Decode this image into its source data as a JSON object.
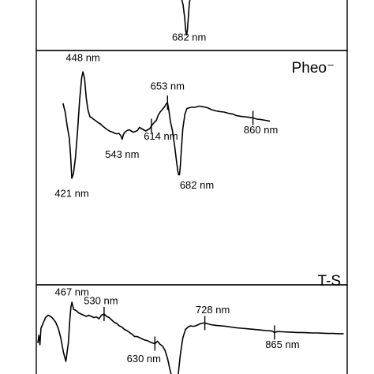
{
  "chart_data": [
    {
      "type": "line",
      "panel": "top",
      "title": "",
      "annotations": [
        {
          "label": "682 nm",
          "x": 682,
          "kind": "minimum"
        }
      ]
    },
    {
      "type": "line",
      "panel": "middle",
      "title": "Pheo⁻",
      "series": [
        {
          "x": [
            400,
            405,
            410,
            415,
            418,
            421,
            425,
            430,
            435,
            440,
            445,
            448,
            452,
            456,
            460,
            465,
            470,
            475,
            480,
            485,
            490,
            495,
            500,
            505,
            510,
            515,
            520,
            525,
            530,
            535,
            540,
            543,
            546,
            550,
            555,
            560,
            565,
            570,
            575,
            580,
            585,
            590,
            595,
            600,
            605,
            610,
            614,
            618,
            622,
            626,
            630,
            635,
            640,
            645,
            650,
            653,
            656,
            660,
            665,
            670,
            675,
            678,
            680,
            682,
            684,
            686,
            690,
            695,
            700,
            710,
            720,
            730,
            740,
            750,
            760,
            770,
            780,
            790,
            800,
            810,
            820,
            830,
            840,
            850,
            860,
            870,
            880,
            890,
            900
          ],
          "values": [
            1.55,
            1.2,
            0.6,
            0.1,
            -0.6,
            -1.6,
            -1.4,
            -0.7,
            0.4,
            1.7,
            2.65,
            2.9,
            2.6,
            1.8,
            1.3,
            1.0,
            0.95,
            0.88,
            0.82,
            0.75,
            0.7,
            0.62,
            0.55,
            0.48,
            0.42,
            0.38,
            0.35,
            0.3,
            0.28,
            0.3,
            0.2,
            0.05,
            0.25,
            0.35,
            0.42,
            0.45,
            0.4,
            0.35,
            0.38,
            0.42,
            0.55,
            0.5,
            0.45,
            0.4,
            0.45,
            0.5,
            0.62,
            0.7,
            0.78,
            0.85,
            1.05,
            1.2,
            1.3,
            1.4,
            1.55,
            1.6,
            1.3,
            0.8,
            0.4,
            -0.2,
            -0.9,
            -1.3,
            -1.45,
            -1.45,
            -1.1,
            -0.5,
            0.5,
            1.1,
            1.35,
            1.4,
            1.4,
            1.45,
            1.42,
            1.38,
            1.3,
            1.25,
            1.22,
            1.2,
            1.15,
            1.12,
            1.05,
            1.02,
            1.0,
            0.98,
            0.95,
            0.9,
            0.88,
            0.85,
            0.82
          ]
        }
      ],
      "annotations": [
        {
          "label": "448 nm",
          "x": 448,
          "kind": "maximum"
        },
        {
          "label": "421 nm",
          "x": 421,
          "kind": "minimum"
        },
        {
          "label": "543 nm",
          "x": 543,
          "kind": "minimum"
        },
        {
          "label": "614 nm",
          "x": 614,
          "kind": "marker"
        },
        {
          "label": "653 nm",
          "x": 653,
          "kind": "marker"
        },
        {
          "label": "682 nm",
          "x": 682,
          "kind": "minimum"
        },
        {
          "label": "860 nm",
          "x": 860,
          "kind": "marker"
        }
      ]
    },
    {
      "type": "line",
      "panel": "bottom",
      "title": "T-S",
      "series": [
        {
          "x": [
            400,
            402,
            404,
            406,
            408,
            410,
            412,
            415,
            420,
            425,
            430,
            435,
            440,
            445,
            450,
            455,
            460,
            463,
            465,
            467,
            470,
            475,
            480,
            485,
            490,
            495,
            500,
            505,
            510,
            515,
            520,
            525,
            530,
            535,
            540,
            545,
            550,
            555,
            560,
            565,
            570,
            575,
            580,
            585,
            590,
            595,
            600,
            605,
            610,
            615,
            620,
            625,
            630,
            635,
            640,
            645,
            650,
            655,
            660,
            665,
            670,
            675,
            680,
            685,
            690,
            695,
            700,
            705,
            710,
            715,
            720,
            725,
            728,
            732,
            740,
            750,
            760,
            770,
            780,
            790,
            800,
            810,
            820,
            830,
            840,
            850,
            860,
            865,
            870,
            880,
            890,
            900,
            910,
            920,
            930,
            940,
            950,
            960,
            970,
            980,
            990,
            1000
          ],
          "values": [
            0.2,
            0.5,
            0.1,
            0.8,
            0.9,
            1.0,
            1.1,
            1.25,
            1.35,
            1.3,
            1.2,
            1.05,
            0.8,
            0.4,
            -0.2,
            -0.6,
            0.2,
            1.2,
            1.7,
            1.9,
            1.6,
            1.55,
            1.45,
            1.4,
            1.35,
            1.3,
            1.35,
            1.3,
            1.25,
            1.28,
            1.2,
            1.35,
            1.4,
            1.3,
            1.25,
            1.15,
            1.05,
            1.0,
            0.9,
            0.85,
            0.75,
            0.7,
            0.62,
            0.55,
            0.45,
            0.45,
            0.4,
            0.35,
            0.3,
            0.28,
            0.22,
            0.18,
            0.15,
            0.25,
            0.12,
            0.05,
            -0.15,
            -0.5,
            -1.0,
            -1.6,
            -2.1,
            -1.3,
            -0.3,
            0.4,
            0.75,
            0.85,
            0.9,
            0.88,
            0.9,
            0.95,
            1.0,
            1.02,
            1.02,
            1.0,
            0.95,
            0.92,
            0.9,
            0.88,
            0.85,
            0.82,
            0.8,
            0.78,
            0.76,
            0.74,
            0.72,
            0.7,
            0.68,
            0.62,
            0.66,
            0.65,
            0.64,
            0.63,
            0.62,
            0.62,
            0.61,
            0.6,
            0.6,
            0.59,
            0.58,
            0.58,
            0.57,
            0.57
          ]
        }
      ],
      "annotations": [
        {
          "label": "467 nm",
          "x": 467,
          "kind": "maximum"
        },
        {
          "label": "530 nm",
          "x": 530,
          "kind": "marker"
        },
        {
          "label": "630 nm",
          "x": 630,
          "kind": "marker"
        },
        {
          "label": "728 nm",
          "x": 728,
          "kind": "marker"
        },
        {
          "label": "865 nm",
          "x": 865,
          "kind": "marker"
        }
      ]
    }
  ]
}
